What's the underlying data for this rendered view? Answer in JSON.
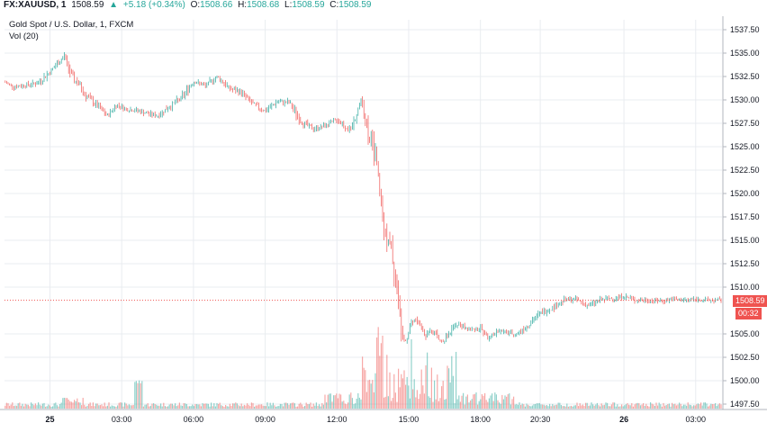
{
  "header": {
    "symbol": "FX:XAUUSD, 1",
    "price": "1508.59",
    "arrow": "▲",
    "change": "+5.18 (+0.34%)",
    "o_label": "O:",
    "o_value": "1508.66",
    "h_label": "H:",
    "h_value": "1508.68",
    "l_label": "L:",
    "l_value": "1508.59",
    "c_label": "C:",
    "c_value": "1508.59"
  },
  "subtitle": "Gold Spot / U.S. Dollar, 1, FXCM",
  "volume_label": "Vol (20)",
  "last_price_tag": "1508.59",
  "countdown_tag": "00:32",
  "colors": {
    "up": "#26a69a",
    "down": "#ef5350",
    "grid": "#e9ecf0",
    "price_line": "#ef5350"
  },
  "chart_data": {
    "type": "line",
    "title": "Gold Spot / U.S. Dollar, 1, FXCM",
    "xlabel": "",
    "ylabel": "",
    "ylim": [
      1497.5,
      1537.5
    ],
    "y_ticks": [
      "1537.50",
      "1535.00",
      "1532.50",
      "1530.00",
      "1527.50",
      "1525.00",
      "1522.50",
      "1520.00",
      "1517.50",
      "1515.00",
      "1512.50",
      "1510.00",
      "1505.00",
      "1502.50",
      "1500.00",
      "1497.50"
    ],
    "x_ticks": [
      "25",
      "03:00",
      "06:00",
      "09:00",
      "12:00",
      "15:00",
      "18:00",
      "20:30",
      "26",
      "03:00"
    ],
    "x_tick_hours": [
      0,
      3,
      6,
      9,
      12,
      15,
      18,
      20.5,
      24,
      27
    ],
    "xlim_hours": [
      -1.9,
      28.1
    ],
    "last_price": 1508.59,
    "grid": true,
    "series": [
      {
        "x_hours": [
          -1.9,
          -1.5,
          -1.0,
          -0.5,
          0.0,
          0.3,
          0.6,
          0.9,
          1.2,
          1.5,
          2.0,
          2.4,
          2.8,
          3.2,
          3.6,
          4.0,
          4.5,
          5.0,
          5.5,
          6.0,
          6.5,
          7.0,
          7.5,
          8.0,
          8.5,
          9.0,
          9.5,
          10.0,
          10.5,
          11.0,
          11.5,
          12.0,
          12.3,
          12.6,
          13.0,
          13.3,
          13.6,
          13.9,
          14.1,
          14.3,
          14.5,
          14.7,
          14.9,
          15.1,
          15.3,
          15.5,
          15.7,
          15.9,
          16.1,
          16.3,
          16.6,
          17.0,
          17.5,
          18.0,
          18.3,
          18.5,
          18.7,
          19.0,
          19.5,
          20.0,
          20.5,
          21.0,
          21.5,
          22.0,
          22.5,
          23.0,
          23.5,
          24.0,
          24.5,
          25.0,
          25.5,
          26.0,
          26.5,
          27.0,
          27.5,
          28.0
        ],
        "y": [
          1531.9,
          1531.4,
          1531.6,
          1531.8,
          1533.0,
          1533.8,
          1534.7,
          1532.5,
          1531.7,
          1530.5,
          1529.3,
          1528.3,
          1529.5,
          1529.0,
          1528.9,
          1528.6,
          1528.3,
          1529.3,
          1530.2,
          1532.0,
          1531.5,
          1532.5,
          1531.2,
          1530.8,
          1529.5,
          1528.8,
          1529.8,
          1529.7,
          1527.7,
          1526.9,
          1527.2,
          1527.9,
          1527.2,
          1526.7,
          1530.1,
          1526.6,
          1524.2,
          1517.8,
          1515.2,
          1513.5,
          1509.8,
          1505.5,
          1504.2,
          1506.4,
          1506.5,
          1505.8,
          1504.7,
          1505.6,
          1505.1,
          1504.2,
          1504.6,
          1506.1,
          1505.4,
          1505.6,
          1504.6,
          1504.7,
          1505.4,
          1505.2,
          1505.0,
          1506.0,
          1507.2,
          1507.8,
          1508.6,
          1508.7,
          1508.0,
          1508.6,
          1508.8,
          1509.0,
          1508.6,
          1508.6,
          1508.5,
          1508.7,
          1508.6,
          1508.7,
          1508.6,
          1508.59
        ]
      }
    ]
  }
}
